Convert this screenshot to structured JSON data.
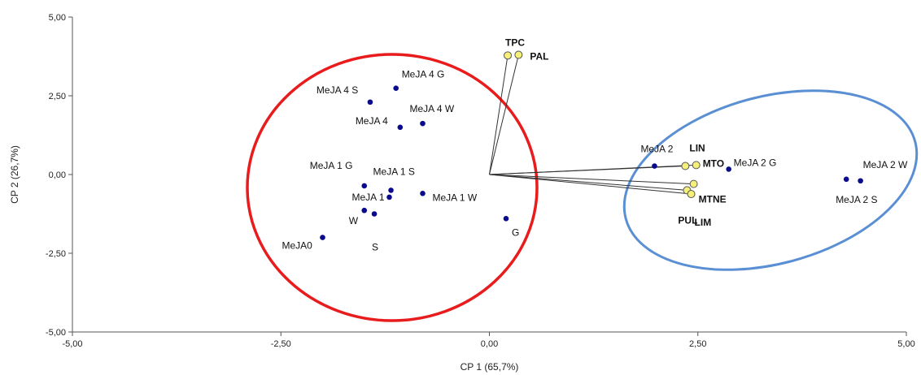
{
  "chart_data": {
    "type": "scatter",
    "xlabel": "CP 1 (65,7%)",
    "ylabel": "CP 2 (26,7%)",
    "xlim": [
      -5,
      5
    ],
    "ylim": [
      -5,
      5
    ],
    "x_ticks": [
      -5,
      -2.5,
      0,
      2.5,
      5
    ],
    "y_ticks": [
      -5,
      -2.5,
      0,
      2.5,
      5
    ],
    "x_tick_labels": [
      "-5,00",
      "-2,50",
      "0,00",
      "2,50",
      "5,00"
    ],
    "y_tick_labels": [
      "-5,00",
      "-2,50",
      "0,00",
      "2,50",
      "5,00"
    ],
    "grid": false,
    "colors": {
      "observation": "#0a0a8c",
      "variable_fill": "#f5f07a",
      "variable_stroke": "#555555",
      "loading_line": "#333333",
      "ellipse_red": "#e81c1c",
      "ellipse_blue": "#5a8fd4"
    },
    "observations": [
      {
        "label": "MeJA 4 G",
        "x": -1.12,
        "y": 2.74
      },
      {
        "label": "MeJA 4 S",
        "x": -1.43,
        "y": 2.3
      },
      {
        "label": "MeJA 4 W",
        "x": -0.8,
        "y": 1.62
      },
      {
        "label": "MeJA 4",
        "x": -1.07,
        "y": 1.5
      },
      {
        "label": "MeJA 1 G",
        "x": -1.5,
        "y": -0.36
      },
      {
        "label": "MeJA 1 S",
        "x": -1.18,
        "y": -0.5
      },
      {
        "label": "MeJA 1",
        "x": -1.2,
        "y": -0.72
      },
      {
        "label": "MeJA 1 W",
        "x": -0.8,
        "y": -0.6
      },
      {
        "label": "W",
        "x": -1.5,
        "y": -1.14
      },
      {
        "label": "S",
        "x": -1.38,
        "y": -1.25
      },
      {
        "label": "MeJA0",
        "x": -2.0,
        "y": -2.0
      },
      {
        "label": "G",
        "x": 0.2,
        "y": -1.4
      },
      {
        "label": "MeJA 2",
        "x": 1.98,
        "y": 0.27
      },
      {
        "label": "MeJA 2 G",
        "x": 2.87,
        "y": 0.17
      },
      {
        "label": "MeJA 2 W",
        "x": 4.45,
        "y": -0.2
      },
      {
        "label": "MeJA 2 S",
        "x": 4.28,
        "y": -0.15
      }
    ],
    "variables": [
      {
        "label": "TPC",
        "x": 0.22,
        "y": 3.78
      },
      {
        "label": "PAL",
        "x": 0.35,
        "y": 3.8
      },
      {
        "label": "LIN",
        "x": 2.35,
        "y": 0.27
      },
      {
        "label": "MTO",
        "x": 2.48,
        "y": 0.3
      },
      {
        "label": "MTNE",
        "x": 2.45,
        "y": -0.3
      },
      {
        "label": "PUL",
        "x": 2.37,
        "y": -0.5
      },
      {
        "label": "LIM",
        "x": 2.42,
        "y": -0.62
      }
    ]
  }
}
